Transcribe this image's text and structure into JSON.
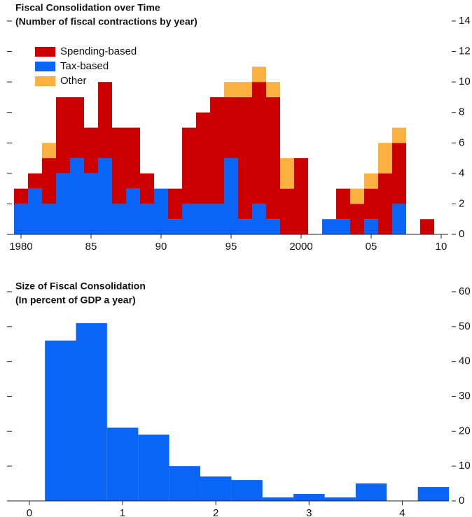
{
  "chart_data": [
    {
      "type": "bar",
      "stacked": true,
      "title": "Fiscal Consolidation over Time",
      "subtitle": "(Number of fiscal contractions by year)",
      "x": [
        1980,
        1981,
        1982,
        1983,
        1984,
        1985,
        1986,
        1987,
        1988,
        1989,
        1990,
        1991,
        1992,
        1993,
        1994,
        1995,
        1996,
        1997,
        1998,
        1999,
        2000,
        2001,
        2002,
        2003,
        2004,
        2005,
        2006,
        2007,
        2008,
        2009
      ],
      "series": [
        {
          "name": "Tax-based",
          "color": "#0a64f5",
          "values": [
            2,
            3,
            2,
            4,
            5,
            4,
            5,
            2,
            3,
            2,
            3,
            1,
            2,
            2,
            2,
            5,
            1,
            2,
            1,
            0,
            0,
            0,
            1,
            1,
            0,
            1,
            0,
            2,
            0,
            0
          ]
        },
        {
          "name": "Spending-based",
          "color": "#cc0000",
          "values": [
            1,
            1,
            3,
            5,
            4,
            3,
            5,
            5,
            4,
            2,
            0,
            2,
            5,
            6,
            7,
            4,
            8,
            8,
            8,
            3,
            5,
            0,
            0,
            2,
            2,
            2,
            4,
            4,
            0,
            1
          ]
        },
        {
          "name": "Other",
          "color": "#fbb040",
          "values": [
            0,
            0,
            1,
            0,
            0,
            0,
            0,
            0,
            0,
            0,
            0,
            0,
            0,
            0,
            0,
            1,
            1,
            1,
            1,
            2,
            0,
            0,
            0,
            0,
            1,
            1,
            2,
            1,
            0,
            0
          ]
        }
      ],
      "legend_order": [
        1,
        0,
        2
      ],
      "xlim": [
        1979.5,
        2010.5
      ],
      "xticks": [
        1980,
        {
          "value": 1985,
          "label": "85"
        },
        {
          "value": 1990,
          "label": "90"
        },
        {
          "value": 1995,
          "label": "95"
        },
        2000,
        {
          "value": 2005,
          "label": "05"
        },
        {
          "value": 2010,
          "label": "10"
        }
      ],
      "ylim": [
        0,
        14
      ],
      "yticks": [
        0,
        2,
        4,
        6,
        8,
        10,
        12,
        14
      ]
    },
    {
      "type": "histogram",
      "title": "Size of Fiscal Consolidation",
      "subtitle": "(In percent of GDP a year)",
      "color": "#0a64f5",
      "bins": [
        0.167,
        0.5,
        0.833,
        1.167,
        1.5,
        1.833,
        2.167,
        2.5,
        2.833,
        3.167,
        3.5,
        3.833,
        4.167,
        4.5
      ],
      "values": [
        46,
        51,
        21,
        19,
        10,
        7,
        6,
        1,
        2,
        1,
        5,
        0,
        4
      ],
      "xlim": [
        -0.24,
        4.5
      ],
      "xticks": [
        0,
        1,
        2,
        3,
        4
      ],
      "ylim": [
        0,
        60
      ],
      "yticks": [
        0,
        10,
        20,
        30,
        40,
        50,
        60
      ]
    }
  ]
}
